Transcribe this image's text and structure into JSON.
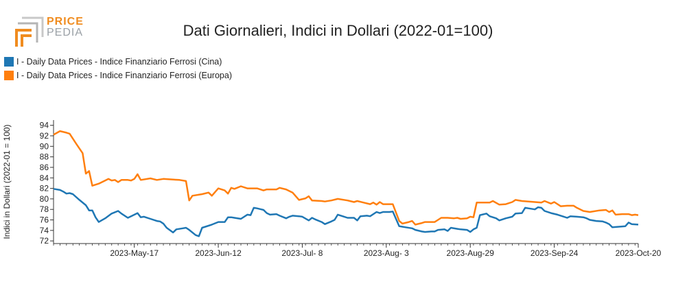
{
  "logo": {
    "line1": "PRICE",
    "line2": "PEDIA",
    "name": "pricepedia-logo"
  },
  "chart_data": {
    "type": "line",
    "title": "Dati Giornalieri, Indici in Dollari (2022-01=100)",
    "ylabel": "Indici in Dollari (2022-01 = 100)",
    "xlabel": "",
    "ylim": [
      71.5,
      95
    ],
    "yticks": [
      72,
      74,
      76,
      78,
      80,
      82,
      84,
      86,
      88,
      90,
      92,
      94
    ],
    "x_domain": [
      "2023-04-22",
      "2023-10-20"
    ],
    "xticks": [
      {
        "label": "2023-May-17",
        "date": "2023-05-17"
      },
      {
        "label": "2023-Jun-12",
        "date": "2023-06-12"
      },
      {
        "label": "2023-Jul- 8",
        "date": "2023-07-08"
      },
      {
        "label": "2023-Aug- 3",
        "date": "2023-08-03"
      },
      {
        "label": "2023-Aug-29",
        "date": "2023-08-29"
      },
      {
        "label": "2023-Sep-24",
        "date": "2023-09-24"
      },
      {
        "label": "2023-Oct-20",
        "date": "2023-10-20"
      }
    ],
    "legend_position": "top-left",
    "grid": false,
    "series": [
      {
        "name": "I - Daily Data Prices - Indice Finanziario Ferrosi (Cina)",
        "color": "#1f77b4",
        "points": [
          [
            "2023-04-22",
            81.9
          ],
          [
            "2023-04-24",
            81.7
          ],
          [
            "2023-04-25",
            81.4
          ],
          [
            "2023-04-26",
            81.0
          ],
          [
            "2023-04-27",
            81.1
          ],
          [
            "2023-04-28",
            80.9
          ],
          [
            "2023-04-30",
            79.8
          ],
          [
            "2023-05-02",
            78.8
          ],
          [
            "2023-05-03",
            77.8
          ],
          [
            "2023-05-04",
            77.8
          ],
          [
            "2023-05-05",
            76.5
          ],
          [
            "2023-05-06",
            75.6
          ],
          [
            "2023-05-08",
            76.3
          ],
          [
            "2023-05-10",
            77.2
          ],
          [
            "2023-05-12",
            77.7
          ],
          [
            "2023-05-13",
            77.2
          ],
          [
            "2023-05-15",
            76.4
          ],
          [
            "2023-05-16",
            76.7
          ],
          [
            "2023-05-18",
            77.3
          ],
          [
            "2023-05-19",
            76.5
          ],
          [
            "2023-05-20",
            76.6
          ],
          [
            "2023-05-22",
            76.2
          ],
          [
            "2023-05-24",
            75.8
          ],
          [
            "2023-05-25",
            75.7
          ],
          [
            "2023-05-26",
            75.3
          ],
          [
            "2023-05-27",
            74.5
          ],
          [
            "2023-05-29",
            73.6
          ],
          [
            "2023-05-30",
            74.2
          ],
          [
            "2023-06-01",
            74.4
          ],
          [
            "2023-06-02",
            74.5
          ],
          [
            "2023-06-03",
            74.1
          ],
          [
            "2023-06-05",
            73.1
          ],
          [
            "2023-06-06",
            72.9
          ],
          [
            "2023-06-07",
            74.5
          ],
          [
            "2023-06-09",
            74.9
          ],
          [
            "2023-06-10",
            75.1
          ],
          [
            "2023-06-12",
            75.6
          ],
          [
            "2023-06-14",
            75.6
          ],
          [
            "2023-06-15",
            76.5
          ],
          [
            "2023-06-16",
            76.5
          ],
          [
            "2023-06-17",
            76.4
          ],
          [
            "2023-06-19",
            76.2
          ],
          [
            "2023-06-21",
            77.0
          ],
          [
            "2023-06-22",
            76.9
          ],
          [
            "2023-06-23",
            78.3
          ],
          [
            "2023-06-24",
            78.2
          ],
          [
            "2023-06-26",
            77.9
          ],
          [
            "2023-06-27",
            77.3
          ],
          [
            "2023-06-28",
            77.0
          ],
          [
            "2023-06-30",
            77.1
          ],
          [
            "2023-07-01",
            76.8
          ],
          [
            "2023-07-03",
            76.3
          ],
          [
            "2023-07-04",
            76.6
          ],
          [
            "2023-07-05",
            76.8
          ],
          [
            "2023-07-07",
            76.7
          ],
          [
            "2023-07-08",
            76.6
          ],
          [
            "2023-07-10",
            75.9
          ],
          [
            "2023-07-11",
            76.4
          ],
          [
            "2023-07-12",
            76.1
          ],
          [
            "2023-07-14",
            75.6
          ],
          [
            "2023-07-15",
            75.2
          ],
          [
            "2023-07-17",
            75.7
          ],
          [
            "2023-07-18",
            76.0
          ],
          [
            "2023-07-19",
            77.0
          ],
          [
            "2023-07-21",
            76.6
          ],
          [
            "2023-07-22",
            76.4
          ],
          [
            "2023-07-24",
            76.4
          ],
          [
            "2023-07-25",
            75.9
          ],
          [
            "2023-07-26",
            76.7
          ],
          [
            "2023-07-28",
            76.8
          ],
          [
            "2023-07-29",
            76.7
          ],
          [
            "2023-07-31",
            77.5
          ],
          [
            "2023-08-01",
            77.3
          ],
          [
            "2023-08-02",
            77.5
          ],
          [
            "2023-08-04",
            77.5
          ],
          [
            "2023-08-05",
            77.6
          ],
          [
            "2023-08-07",
            74.8
          ],
          [
            "2023-08-08",
            74.7
          ],
          [
            "2023-08-09",
            74.6
          ],
          [
            "2023-08-11",
            74.4
          ],
          [
            "2023-08-12",
            74.1
          ],
          [
            "2023-08-14",
            73.8
          ],
          [
            "2023-08-15",
            73.7
          ],
          [
            "2023-08-17",
            73.8
          ],
          [
            "2023-08-18",
            73.8
          ],
          [
            "2023-08-19",
            74.1
          ],
          [
            "2023-08-21",
            74.2
          ],
          [
            "2023-08-22",
            73.9
          ],
          [
            "2023-08-23",
            74.5
          ],
          [
            "2023-08-25",
            74.3
          ],
          [
            "2023-08-26",
            74.2
          ],
          [
            "2023-08-28",
            74.1
          ],
          [
            "2023-08-29",
            73.7
          ],
          [
            "2023-08-30",
            74.2
          ],
          [
            "2023-08-31",
            74.5
          ],
          [
            "2023-09-01",
            76.9
          ],
          [
            "2023-09-03",
            77.2
          ],
          [
            "2023-09-04",
            76.7
          ],
          [
            "2023-09-06",
            76.3
          ],
          [
            "2023-09-07",
            75.9
          ],
          [
            "2023-09-09",
            76.3
          ],
          [
            "2023-09-11",
            76.6
          ],
          [
            "2023-09-12",
            77.2
          ],
          [
            "2023-09-14",
            77.3
          ],
          [
            "2023-09-15",
            78.3
          ],
          [
            "2023-09-16",
            78.2
          ],
          [
            "2023-09-18",
            78.0
          ],
          [
            "2023-09-19",
            78.4
          ],
          [
            "2023-09-20",
            78.3
          ],
          [
            "2023-09-21",
            77.7
          ],
          [
            "2023-09-23",
            77.3
          ],
          [
            "2023-09-25",
            77.0
          ],
          [
            "2023-09-27",
            76.6
          ],
          [
            "2023-09-28",
            76.4
          ],
          [
            "2023-09-29",
            76.7
          ],
          [
            "2023-10-01",
            76.6
          ],
          [
            "2023-10-03",
            76.5
          ],
          [
            "2023-10-04",
            76.3
          ],
          [
            "2023-10-05",
            76.0
          ],
          [
            "2023-10-07",
            75.8
          ],
          [
            "2023-10-09",
            75.7
          ],
          [
            "2023-10-10",
            75.5
          ],
          [
            "2023-10-11",
            75.2
          ],
          [
            "2023-10-12",
            74.6
          ],
          [
            "2023-10-14",
            74.7
          ],
          [
            "2023-10-16",
            74.8
          ],
          [
            "2023-10-17",
            75.5
          ],
          [
            "2023-10-18",
            75.2
          ],
          [
            "2023-10-20",
            75.1
          ]
        ]
      },
      {
        "name": "I - Daily Data Prices - Indice Finanziario Ferrosi (Europa)",
        "color": "#ff7f0e",
        "points": [
          [
            "2023-04-22",
            92.2
          ],
          [
            "2023-04-24",
            92.9
          ],
          [
            "2023-04-26",
            92.6
          ],
          [
            "2023-04-27",
            92.4
          ],
          [
            "2023-04-29",
            90.5
          ],
          [
            "2023-05-01",
            88.7
          ],
          [
            "2023-05-02",
            84.8
          ],
          [
            "2023-05-03",
            85.3
          ],
          [
            "2023-05-04",
            82.5
          ],
          [
            "2023-05-06",
            82.9
          ],
          [
            "2023-05-08",
            83.5
          ],
          [
            "2023-05-09",
            83.8
          ],
          [
            "2023-05-10",
            83.5
          ],
          [
            "2023-05-11",
            83.6
          ],
          [
            "2023-05-12",
            83.2
          ],
          [
            "2023-05-13",
            83.6
          ],
          [
            "2023-05-15",
            83.6
          ],
          [
            "2023-05-16",
            83.5
          ],
          [
            "2023-05-17",
            83.8
          ],
          [
            "2023-05-18",
            84.7
          ],
          [
            "2023-05-19",
            83.6
          ],
          [
            "2023-05-22",
            83.9
          ],
          [
            "2023-05-24",
            83.6
          ],
          [
            "2023-05-26",
            83.8
          ],
          [
            "2023-05-31",
            83.6
          ],
          [
            "2023-06-02",
            83.4
          ],
          [
            "2023-06-03",
            79.7
          ],
          [
            "2023-06-04",
            80.6
          ],
          [
            "2023-06-07",
            80.9
          ],
          [
            "2023-06-09",
            81.2
          ],
          [
            "2023-06-10",
            80.6
          ],
          [
            "2023-06-12",
            82.0
          ],
          [
            "2023-06-14",
            81.6
          ],
          [
            "2023-06-15",
            81.0
          ],
          [
            "2023-06-16",
            82.1
          ],
          [
            "2023-06-17",
            81.9
          ],
          [
            "2023-06-19",
            82.4
          ],
          [
            "2023-06-21",
            82.0
          ],
          [
            "2023-06-24",
            82.0
          ],
          [
            "2023-06-26",
            81.6
          ],
          [
            "2023-06-27",
            81.8
          ],
          [
            "2023-06-30",
            81.8
          ],
          [
            "2023-07-01",
            82.1
          ],
          [
            "2023-07-03",
            81.8
          ],
          [
            "2023-07-05",
            81.2
          ],
          [
            "2023-07-07",
            79.8
          ],
          [
            "2023-07-09",
            80.1
          ],
          [
            "2023-07-10",
            80.5
          ],
          [
            "2023-07-11",
            79.7
          ],
          [
            "2023-07-14",
            79.6
          ],
          [
            "2023-07-15",
            79.5
          ],
          [
            "2023-07-17",
            79.7
          ],
          [
            "2023-07-19",
            80.0
          ],
          [
            "2023-07-22",
            79.7
          ],
          [
            "2023-07-24",
            79.4
          ],
          [
            "2023-07-25",
            79.6
          ],
          [
            "2023-07-27",
            79.3
          ],
          [
            "2023-07-29",
            79.0
          ],
          [
            "2023-07-30",
            79.3
          ],
          [
            "2023-07-31",
            78.9
          ],
          [
            "2023-08-01",
            79.4
          ],
          [
            "2023-08-02",
            79.0
          ],
          [
            "2023-08-05",
            79.0
          ],
          [
            "2023-08-07",
            75.8
          ],
          [
            "2023-08-08",
            75.3
          ],
          [
            "2023-08-10",
            75.6
          ],
          [
            "2023-08-11",
            75.8
          ],
          [
            "2023-08-12",
            75.1
          ],
          [
            "2023-08-14",
            75.4
          ],
          [
            "2023-08-15",
            75.6
          ],
          [
            "2023-08-18",
            75.6
          ],
          [
            "2023-08-20",
            76.4
          ],
          [
            "2023-08-22",
            76.4
          ],
          [
            "2023-08-24",
            76.3
          ],
          [
            "2023-08-25",
            76.4
          ],
          [
            "2023-08-26",
            76.2
          ],
          [
            "2023-08-28",
            76.3
          ],
          [
            "2023-08-29",
            76.6
          ],
          [
            "2023-08-30",
            76.5
          ],
          [
            "2023-08-31",
            79.3
          ],
          [
            "2023-09-02",
            79.3
          ],
          [
            "2023-09-04",
            79.3
          ],
          [
            "2023-09-05",
            79.6
          ],
          [
            "2023-09-07",
            78.9
          ],
          [
            "2023-09-09",
            79.0
          ],
          [
            "2023-09-11",
            79.4
          ],
          [
            "2023-09-12",
            79.8
          ],
          [
            "2023-09-14",
            79.6
          ],
          [
            "2023-09-16",
            79.5
          ],
          [
            "2023-09-18",
            79.4
          ],
          [
            "2023-09-20",
            79.3
          ],
          [
            "2023-09-21",
            79.6
          ],
          [
            "2023-09-23",
            79.1
          ],
          [
            "2023-09-24",
            79.4
          ],
          [
            "2023-09-26",
            78.6
          ],
          [
            "2023-09-28",
            78.7
          ],
          [
            "2023-09-30",
            78.7
          ],
          [
            "2023-10-01",
            78.3
          ],
          [
            "2023-10-03",
            77.7
          ],
          [
            "2023-10-05",
            77.5
          ],
          [
            "2023-10-08",
            77.8
          ],
          [
            "2023-10-10",
            77.9
          ],
          [
            "2023-10-11",
            77.5
          ],
          [
            "2023-10-12",
            77.8
          ],
          [
            "2023-10-13",
            77.0
          ],
          [
            "2023-10-15",
            77.1
          ],
          [
            "2023-10-17",
            77.1
          ],
          [
            "2023-10-18",
            76.9
          ],
          [
            "2023-10-19",
            77.0
          ],
          [
            "2023-10-20",
            76.9
          ]
        ]
      }
    ]
  }
}
